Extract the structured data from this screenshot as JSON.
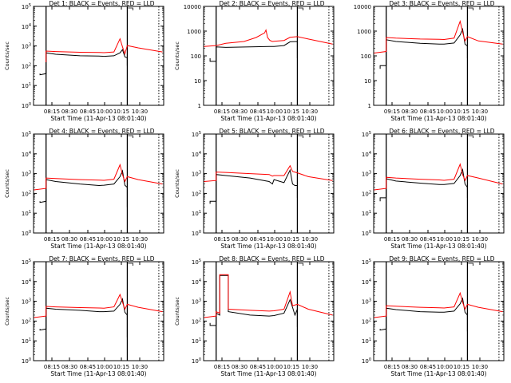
{
  "page": {
    "background": "#ffffff",
    "colors": {
      "events": "#000000",
      "lld": "#ff0000",
      "axes": "#000000"
    }
  },
  "chart_data": [
    {
      "type": "line",
      "title": "Det 1: BLACK = Events, RED = LLD",
      "xlabel": "Start Time (11-Apr-13 08:01:40)",
      "ylabel": "Counts/sec",
      "yscale": "log",
      "ylim": [
        1,
        100000
      ],
      "yticks": [
        "10^0",
        "10^1",
        "10^2",
        "10^3",
        "10^4",
        "10^5"
      ],
      "xlim": [
        "08:01:40",
        "10:41:00"
      ],
      "xticks": [
        "08:15",
        "08:30",
        "08:45",
        "10:00",
        "10:15",
        "10:30"
      ],
      "markers": {
        "solid": [
          "08:12",
          "10:11"
        ],
        "dotted": [
          "10:37"
        ]
      },
      "series": [
        {
          "name": "Events",
          "color": "#000000",
          "x": [
            "08:07",
            "08:07",
            "08:12",
            "08:12",
            "08:20",
            "08:40",
            "09:20",
            "09:50",
            "10:00",
            "10:05",
            "10:07",
            "10:09",
            "10:11",
            "10:11"
          ],
          "y": [
            40,
            35,
            40,
            450,
            380,
            320,
            310,
            300,
            320,
            450,
            650,
            280,
            250,
            100
          ]
        },
        {
          "name": "LLD",
          "color": "#ff0000",
          "x": [
            "08:12",
            "08:12",
            "08:20",
            "08:40",
            "09:20",
            "09:50",
            "10:00",
            "10:05",
            "10:07",
            "10:09",
            "10:11",
            "10:20",
            "10:40"
          ],
          "y": [
            150,
            550,
            520,
            480,
            470,
            460,
            500,
            2300,
            900,
            400,
            1050,
            800,
            500
          ]
        }
      ]
    },
    {
      "type": "line",
      "title": "Det 2: BLACK = Events, RED = LLD",
      "xlabel": "Start Time (11-Apr-13 08:01:40)",
      "ylabel": "Counts/sec",
      "yscale": "log",
      "ylim": [
        1,
        10000
      ],
      "yticks": [
        "1",
        "10",
        "100",
        "1000",
        "10000"
      ],
      "xlim": [
        "08:01:40",
        "10:41:00"
      ],
      "xticks": [
        "08:15",
        "08:30",
        "08:45",
        "10:00",
        "10:15",
        "10:30"
      ],
      "markers": {
        "solid": [
          "08:12",
          "10:11"
        ],
        "dotted": [
          "10:37"
        ]
      },
      "series": [
        {
          "name": "Events",
          "color": "#000000",
          "x": [
            "08:07",
            "08:07",
            "08:12",
            "08:12",
            "08:20",
            "08:40",
            "09:20",
            "09:50",
            "10:00",
            "10:05",
            "10:11",
            "10:11"
          ],
          "y": [
            80,
            60,
            60,
            230,
            220,
            230,
            240,
            240,
            260,
            370,
            380,
            80
          ]
        },
        {
          "name": "LLD",
          "color": "#ff0000",
          "x": [
            "08:02",
            "08:12",
            "08:20",
            "08:35",
            "08:45",
            "08:52",
            "09:00",
            "09:10",
            "09:25",
            "09:40",
            "09:50",
            "10:00",
            "10:05",
            "10:11",
            "10:20",
            "10:40"
          ],
          "y": [
            240,
            260,
            320,
            380,
            550,
            850,
            1100,
            550,
            420,
            380,
            390,
            420,
            560,
            600,
            480,
            300
          ]
        }
      ]
    },
    {
      "type": "line",
      "title": "Det 3: BLACK = Events, RED = LLD",
      "xlabel": "Start Time (11-Apr-13 08:01:40)",
      "ylabel": "",
      "yscale": "log",
      "ylim": [
        1,
        10000
      ],
      "yticks": [
        "1",
        "10",
        "100",
        "1000",
        "10000"
      ],
      "xlim": [
        "08:01:40",
        "10:41:00"
      ],
      "xticks": [
        "09:15",
        "08:30",
        "08:45",
        "10:00",
        "10:15",
        "10:30"
      ],
      "markers": {
        "solid": [
          "08:12",
          "10:11"
        ],
        "dotted": [
          "10:37"
        ]
      },
      "series": [
        {
          "name": "Events",
          "color": "#000000",
          "x": [
            "08:07",
            "08:07",
            "08:12",
            "08:12",
            "08:20",
            "08:40",
            "09:20",
            "09:50",
            "10:00",
            "10:05",
            "10:07",
            "10:09",
            "10:11",
            "10:11"
          ],
          "y": [
            30,
            40,
            40,
            450,
            380,
            320,
            300,
            300,
            330,
            700,
            1200,
            300,
            250,
            80
          ]
        },
        {
          "name": "LLD",
          "color": "#ff0000",
          "x": [
            "08:02",
            "08:12",
            "08:12",
            "08:20",
            "08:40",
            "09:20",
            "09:50",
            "10:00",
            "10:05",
            "10:07",
            "10:09",
            "10:11",
            "10:20",
            "10:40"
          ],
          "y": [
            130,
            150,
            550,
            520,
            480,
            470,
            460,
            520,
            2500,
            900,
            400,
            600,
            400,
            300
          ]
        }
      ]
    },
    {
      "type": "line",
      "title": "Det 4: BLACK = Events, RED = LLD",
      "xlabel": "Start Time (11-Apr-13 08:01:40)",
      "ylabel": "Counts/sec",
      "yscale": "log",
      "ylim": [
        1,
        100000
      ],
      "yticks": [
        "10^0",
        "10^1",
        "10^2",
        "10^3",
        "10^4",
        "10^5"
      ],
      "xlim": [
        "08:01:40",
        "10:41:00"
      ],
      "xticks": [
        "08:15",
        "08:30",
        "08:45",
        "10:00",
        "10:15",
        "10:30"
      ],
      "markers": {
        "solid": [
          "08:12",
          "10:11"
        ],
        "dotted": [
          "10:37"
        ]
      },
      "series": [
        {
          "name": "Events",
          "color": "#000000",
          "x": [
            "08:07",
            "08:07",
            "08:12",
            "08:12",
            "08:20",
            "08:40",
            "09:20",
            "09:50",
            "10:00",
            "10:05",
            "10:07",
            "10:09",
            "10:11",
            "10:11"
          ],
          "y": [
            40,
            35,
            40,
            500,
            400,
            300,
            250,
            260,
            300,
            700,
            1400,
            260,
            200,
            20
          ]
        },
        {
          "name": "LLD",
          "color": "#ff0000",
          "x": [
            "08:02",
            "08:12",
            "08:12",
            "08:20",
            "08:40",
            "09:20",
            "09:50",
            "10:00",
            "10:05",
            "10:07",
            "10:09",
            "10:11",
            "10:20",
            "10:40"
          ],
          "y": [
            150,
            180,
            600,
            560,
            500,
            470,
            460,
            520,
            2800,
            900,
            400,
            700,
            500,
            300
          ]
        }
      ]
    },
    {
      "type": "line",
      "title": "Det 5: BLACK = Events, RED = LLD",
      "xlabel": "Start Time (11-Apr-13 08:01:40)",
      "ylabel": "Counts/sec",
      "yscale": "log",
      "ylim": [
        1,
        100000
      ],
      "yticks": [
        "10^0",
        "10^1",
        "10^2",
        "10^3",
        "10^4",
        "10^5"
      ],
      "xlim": [
        "08:01:40",
        "10:41:00"
      ],
      "xticks": [
        "08:15",
        "08:30",
        "08:45",
        "10:00",
        "10:15",
        "10:30"
      ],
      "markers": {
        "solid": [
          "08:12",
          "10:11"
        ],
        "dotted": [
          "10:37"
        ]
      },
      "series": [
        {
          "name": "Events",
          "color": "#000000",
          "x": [
            "08:07",
            "08:07",
            "08:12",
            "08:12",
            "08:20",
            "08:40",
            "09:20",
            "09:40",
            "09:50",
            "10:00",
            "10:05",
            "10:07",
            "10:09",
            "10:11",
            "10:11"
          ],
          "y": [
            30,
            40,
            40,
            900,
            800,
            600,
            400,
            300,
            500,
            350,
            1500,
            300,
            250,
            250,
            60
          ]
        },
        {
          "name": "LLD",
          "color": "#ff0000",
          "x": [
            "08:02",
            "08:12",
            "08:12",
            "08:20",
            "08:40",
            "09:20",
            "09:40",
            "09:50",
            "10:00",
            "10:05",
            "10:07",
            "10:11",
            "10:20",
            "10:40"
          ],
          "y": [
            400,
            450,
            1200,
            1150,
            1000,
            900,
            750,
            800,
            800,
            2500,
            1300,
            1100,
            700,
            450
          ]
        }
      ]
    },
    {
      "type": "line",
      "title": "Det 6: BLACK = Events, RED = LLD",
      "xlabel": "Start Time (11-Apr-13 08:01:40)",
      "ylabel": "",
      "yscale": "log",
      "ylim": [
        1,
        100000
      ],
      "yticks": [
        "10^0",
        "10^1",
        "10^2",
        "10^3",
        "10^4",
        "10^5"
      ],
      "xlim": [
        "08:01:40",
        "10:41:00"
      ],
      "xticks": [
        "08:15",
        "08:30",
        "08:45",
        "10:00",
        "10:15",
        "10:30"
      ],
      "markers": {
        "solid": [
          "08:12",
          "10:11"
        ],
        "dotted": [
          "10:37"
        ]
      },
      "series": [
        {
          "name": "Events",
          "color": "#000000",
          "x": [
            "08:07",
            "08:07",
            "08:12",
            "08:12",
            "08:20",
            "08:40",
            "09:20",
            "09:50",
            "10:00",
            "10:05",
            "10:07",
            "10:09",
            "10:11",
            "10:11"
          ],
          "y": [
            40,
            60,
            60,
            550,
            420,
            330,
            280,
            280,
            320,
            800,
            1600,
            300,
            200,
            60
          ]
        },
        {
          "name": "LLD",
          "color": "#ff0000",
          "x": [
            "08:02",
            "08:12",
            "08:12",
            "08:20",
            "08:40",
            "09:20",
            "09:50",
            "10:00",
            "10:05",
            "10:07",
            "10:09",
            "10:11",
            "10:20",
            "10:40"
          ],
          "y": [
            150,
            180,
            650,
            600,
            520,
            480,
            460,
            520,
            3000,
            900,
            450,
            800,
            600,
            300
          ]
        }
      ]
    },
    {
      "type": "line",
      "title": "Det 7: BLACK = Events, RED = LLD",
      "xlabel": "Start Time (11-Apr-13 08:01:40)",
      "ylabel": "Counts/sec",
      "yscale": "log",
      "ylim": [
        1,
        100000
      ],
      "yticks": [
        "10^0",
        "10^1",
        "10^2",
        "10^3",
        "10^4",
        "10^5"
      ],
      "xlim": [
        "08:01:40",
        "10:41:00"
      ],
      "xticks": [
        "08:15",
        "08:30",
        "08:45",
        "10:00",
        "10:15",
        "10:30"
      ],
      "markers": {
        "solid": [
          "08:12",
          "10:11"
        ],
        "dotted": [
          "10:37"
        ]
      },
      "series": [
        {
          "name": "Events",
          "color": "#000000",
          "x": [
            "08:07",
            "08:07",
            "08:12",
            "08:12",
            "08:20",
            "08:40",
            "09:20",
            "09:50",
            "10:00",
            "10:05",
            "10:07",
            "10:09",
            "10:11",
            "10:11"
          ],
          "y": [
            40,
            35,
            40,
            450,
            400,
            350,
            300,
            300,
            320,
            700,
            1300,
            280,
            200,
            15
          ]
        },
        {
          "name": "LLD",
          "color": "#ff0000",
          "x": [
            "08:02",
            "08:12",
            "08:12",
            "08:20",
            "08:40",
            "09:20",
            "09:50",
            "10:00",
            "10:05",
            "10:07",
            "10:09",
            "10:11",
            "10:20",
            "10:40"
          ],
          "y": [
            150,
            180,
            550,
            520,
            480,
            460,
            450,
            520,
            2200,
            900,
            400,
            700,
            500,
            300
          ]
        }
      ]
    },
    {
      "type": "line",
      "title": "Det 8: BLACK = Events, RED = LLD",
      "xlabel": "Start Time (11-Apr-13 08:01:40)",
      "ylabel": "Counts/sec",
      "yscale": "log",
      "ylim": [
        1,
        100000
      ],
      "yticks": [
        "10^0",
        "10^1",
        "10^2",
        "10^3",
        "10^4",
        "10^5"
      ],
      "xlim": [
        "08:01:40",
        "10:41:00"
      ],
      "xticks": [
        "08:15",
        "08:30",
        "08:45",
        "10:00",
        "10:15",
        "10:30"
      ],
      "markers": {
        "solid": [
          "08:12",
          "10:11"
        ],
        "dotted": [
          "10:37"
        ]
      },
      "series": [
        {
          "name": "Events",
          "color": "#000000",
          "x": [
            "08:07",
            "08:07",
            "08:12",
            "08:12",
            "08:15",
            "08:15",
            "08:22",
            "08:22",
            "08:40",
            "09:20",
            "09:50",
            "10:00",
            "10:05",
            "10:07",
            "10:09",
            "10:11",
            "10:11"
          ],
          "y": [
            80,
            60,
            60,
            250,
            200,
            20000,
            20000,
            300,
            200,
            180,
            190,
            250,
            1200,
            500,
            200,
            400,
            50
          ]
        },
        {
          "name": "LLD",
          "color": "#ff0000",
          "x": [
            "08:02",
            "08:12",
            "08:12",
            "08:15",
            "08:15",
            "08:22",
            "08:22",
            "08:40",
            "09:20",
            "09:50",
            "10:00",
            "10:05",
            "10:07",
            "10:11",
            "10:20",
            "10:40"
          ],
          "y": [
            150,
            180,
            300,
            250,
            22000,
            22000,
            400,
            350,
            320,
            330,
            400,
            3000,
            600,
            700,
            400,
            200
          ]
        }
      ]
    },
    {
      "type": "line",
      "title": "Det 9: BLACK = Events, RED = LLD",
      "xlabel": "Start Time (11-Apr-13 08:01:40)",
      "ylabel": "",
      "yscale": "log",
      "ylim": [
        1,
        100000
      ],
      "yticks": [
        "10^0",
        "10^1",
        "10^2",
        "10^3",
        "10^4",
        "10^5"
      ],
      "xlim": [
        "08:01:40",
        "10:41:00"
      ],
      "xticks": [
        "08:15",
        "08:30",
        "08:45",
        "10:00",
        "10:15",
        "10:30"
      ],
      "markers": {
        "solid": [
          "08:12",
          "10:11"
        ],
        "dotted": [
          "10:37"
        ]
      },
      "series": [
        {
          "name": "Events",
          "color": "#000000",
          "x": [
            "08:07",
            "08:07",
            "08:12",
            "08:12",
            "08:20",
            "08:40",
            "09:20",
            "09:50",
            "10:00",
            "10:05",
            "10:07",
            "10:09",
            "10:11",
            "10:11"
          ],
          "y": [
            40,
            35,
            40,
            450,
            380,
            300,
            280,
            280,
            320,
            750,
            1400,
            280,
            200,
            30
          ]
        },
        {
          "name": "LLD",
          "color": "#ff0000",
          "x": [
            "08:02",
            "08:12",
            "08:12",
            "08:20",
            "08:40",
            "09:20",
            "09:50",
            "10:00",
            "10:05",
            "10:07",
            "10:09",
            "10:11",
            "10:20",
            "10:40"
          ],
          "y": [
            150,
            180,
            600,
            560,
            500,
            470,
            460,
            520,
            2600,
            900,
            400,
            700,
            500,
            300
          ]
        }
      ]
    }
  ]
}
